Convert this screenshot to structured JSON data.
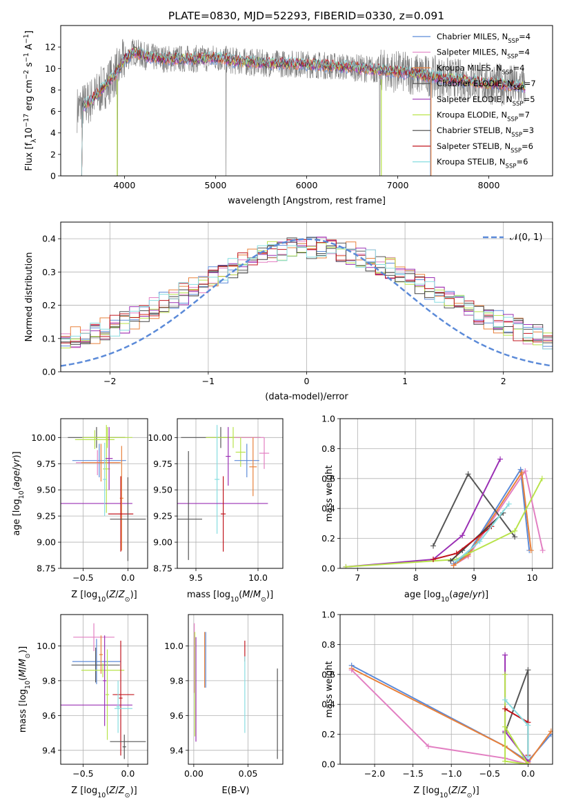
{
  "title": "PLATE=0830, MJD=52293, FIBERID=0330, z=0.091",
  "legend_models": [
    {
      "label": "Chabrier MILES, N",
      "sub": "SSP",
      "tail": "=4",
      "color": "#5b8ad8"
    },
    {
      "label": "Salpeter MILES, N",
      "sub": "SSP",
      "tail": "=4",
      "color": "#e27fc2"
    },
    {
      "label": "Kroupa MILES, N",
      "sub": "SSP",
      "tail": "=4",
      "color": "#e8803a"
    },
    {
      "label": "Chabrier ELODIE, N",
      "sub": "SSP",
      "tail": "=7",
      "color": "#555555"
    },
    {
      "label": "Salpeter ELODIE, N",
      "sub": "SSP",
      "tail": "=5",
      "color": "#9a2fb4"
    },
    {
      "label": "Kroupa ELODIE, N",
      "sub": "SSP",
      "tail": "=7",
      "color": "#b8e34a"
    },
    {
      "label": "Chabrier STELIB, N",
      "sub": "SSP",
      "tail": "=3",
      "color": "#444444"
    },
    {
      "label": "Salpeter STELIB, N",
      "sub": "SSP",
      "tail": "=6",
      "color": "#c0141c"
    },
    {
      "label": "Kroupa STELIB, N",
      "sub": "SSP",
      "tail": "=6",
      "color": "#86dde0"
    }
  ],
  "chart_data": [
    {
      "id": "spectrum",
      "type": "line",
      "xlabel": "wavelength [Angstrom, rest frame]",
      "ylabel": "Flux [f",
      "xlim": [
        3300,
        8700
      ],
      "ylim": [
        0,
        14
      ],
      "xticks": [
        4000,
        5000,
        6000,
        7000,
        8000
      ],
      "yticks": [
        0,
        2,
        4,
        6,
        8,
        10,
        12
      ],
      "continuum": {
        "x": [
          3500,
          3600,
          3700,
          3800,
          3900,
          4000,
          4100,
          4200,
          4400,
          4600,
          4800,
          5000,
          5200,
          5500,
          6000,
          6500,
          7000,
          7500,
          8000,
          8400
        ],
        "y": [
          6.3,
          6.8,
          7.6,
          8.5,
          9.5,
          10.8,
          11.6,
          11.2,
          10.9,
          10.9,
          10.9,
          11.0,
          10.7,
          10.5,
          10.4,
          10.1,
          9.7,
          9.1,
          8.6,
          8.3
        ]
      },
      "grid": false
    },
    {
      "id": "residuals",
      "type": "line",
      "xlabel": "(data-model)/error",
      "ylabel": "Normed distribution",
      "legend": "𝒩(0, 1)",
      "xlim": [
        -2.5,
        2.5
      ],
      "ylim": [
        0,
        0.45
      ],
      "xticks": [
        -2,
        -1,
        0,
        1,
        2
      ],
      "yticks": [
        0.0,
        0.1,
        0.2,
        0.3,
        0.4
      ],
      "gaussian": {
        "mu": 0,
        "sigma": 1,
        "color": "#5b8ad8"
      },
      "grid": true
    },
    {
      "id": "age_vs_Z",
      "type": "scatter",
      "xlabel": "Z [log",
      "ylabel": "age  [log",
      "xlim": [
        -0.75,
        0.22
      ],
      "ylim": [
        8.75,
        10.18
      ],
      "xticks": [
        -0.5,
        0.0
      ],
      "yticks": [
        8.75,
        9.0,
        9.25,
        9.5,
        9.75,
        10.0
      ],
      "points": [
        {
          "x": -0.35,
          "xerr": 0.32,
          "y": 10.0,
          "yerr": 0.1,
          "color": "#555555"
        },
        {
          "x": -0.23,
          "xerr": 0.28,
          "y": 10.0,
          "yerr": 0.1,
          "color": "#b8e34a"
        },
        {
          "x": -0.37,
          "xerr": 0.22,
          "y": 9.98,
          "yerr": 0.09,
          "color": "#b8e34a"
        },
        {
          "x": -0.32,
          "xerr": 0.3,
          "y": 9.78,
          "yerr": 0.16,
          "color": "#5b8ad8"
        },
        {
          "x": -0.34,
          "xerr": 0.24,
          "y": 9.76,
          "yerr": 0.12,
          "color": "#e27fc2"
        },
        {
          "x": -0.3,
          "xerr": 0.22,
          "y": 9.76,
          "yerr": 0.18,
          "color": "#e8803a"
        },
        {
          "x": -0.24,
          "xerr": 0.04,
          "y": 9.7,
          "yerr": 0.42,
          "color": "#b8e34a"
        },
        {
          "x": -0.21,
          "xerr": 0.04,
          "y": 9.8,
          "yerr": 0.3,
          "color": "#9a2fb4"
        },
        {
          "x": -0.35,
          "xerr": 0.4,
          "y": 9.37,
          "yerr": 0.0,
          "color": "#9a2fb4"
        },
        {
          "x": -0.26,
          "xerr": 0.02,
          "y": 9.6,
          "yerr": 0.35,
          "color": "#86dde0"
        },
        {
          "x": -0.07,
          "xerr": 0.02,
          "y": 9.42,
          "yerr": 0.5,
          "color": "#e8803a"
        },
        {
          "x": -0.08,
          "xerr": 0.14,
          "y": 9.27,
          "yerr": 0.36,
          "color": "#c0141c"
        },
        {
          "x": 0.0,
          "xerr": 0.2,
          "y": 9.22,
          "yerr": 0.4,
          "color": "#555555"
        }
      ],
      "grid": true
    },
    {
      "id": "age_vs_mass",
      "type": "scatter",
      "xlabel": "mass [log",
      "ylabel": "",
      "xlim": [
        9.35,
        10.2
      ],
      "ylim": [
        8.75,
        10.18
      ],
      "xticks": [
        9.5,
        10.0
      ],
      "yticks": [
        8.75,
        9.0,
        9.25,
        9.5,
        9.75,
        10.0
      ],
      "points": [
        {
          "x": 9.7,
          "xerr": 0.32,
          "y": 10.0,
          "yerr": 0.1,
          "color": "#555555"
        },
        {
          "x": 9.8,
          "xerr": 0.22,
          "y": 10.0,
          "yerr": 0.1,
          "color": "#b8e34a"
        },
        {
          "x": 9.93,
          "xerr": 0.12,
          "y": 10.0,
          "yerr": 0.0,
          "color": "#e27fc2"
        },
        {
          "x": 10.05,
          "xerr": 0.04,
          "y": 9.85,
          "yerr": 0.15,
          "color": "#e27fc2"
        },
        {
          "x": 9.86,
          "xerr": 0.04,
          "y": 9.86,
          "yerr": 0.14,
          "color": "#b8e34a"
        },
        {
          "x": 9.91,
          "xerr": 0.1,
          "y": 9.78,
          "yerr": 0.16,
          "color": "#5b8ad8"
        },
        {
          "x": 9.76,
          "xerr": 0.02,
          "y": 9.82,
          "yerr": 0.28,
          "color": "#9a2fb4"
        },
        {
          "x": 9.96,
          "xerr": 0.03,
          "y": 9.72,
          "yerr": 0.28,
          "color": "#e8803a"
        },
        {
          "x": 9.67,
          "xerr": 0.02,
          "y": 9.6,
          "yerr": 0.52,
          "color": "#86dde0"
        },
        {
          "x": 9.7,
          "xerr": 0.38,
          "y": 9.37,
          "yerr": 0.0,
          "color": "#9a2fb4"
        },
        {
          "x": 9.72,
          "xerr": 0.02,
          "y": 9.27,
          "yerr": 0.36,
          "color": "#c0141c"
        },
        {
          "x": 9.45,
          "xerr": 0.1,
          "y": 9.22,
          "yerr": 0.0,
          "color": "#555555"
        },
        {
          "x": 9.44,
          "xerr": 0.0,
          "y": 9.35,
          "yerr": 0.52,
          "color": "#555555"
        }
      ],
      "grid": true
    },
    {
      "id": "weight_vs_age",
      "type": "line",
      "xlabel": "age  [log",
      "ylabel": "mass weight",
      "xlim": [
        6.7,
        10.35
      ],
      "ylim": [
        0,
        1
      ],
      "xticks": [
        7,
        8,
        9,
        10
      ],
      "yticks": [
        0.0,
        0.2,
        0.4,
        0.6,
        0.8,
        1.0
      ],
      "series": [
        {
          "color": "#5b8ad8",
          "x": [
            8.65,
            8.9,
            9.8,
            9.95
          ],
          "y": [
            0.03,
            0.1,
            0.66,
            0.12
          ]
        },
        {
          "color": "#e27fc2",
          "x": [
            8.65,
            8.9,
            9.88,
            10.18
          ],
          "y": [
            0.02,
            0.08,
            0.65,
            0.12
          ]
        },
        {
          "color": "#e8803a",
          "x": [
            8.65,
            8.9,
            9.82,
            9.98
          ],
          "y": [
            0.02,
            0.09,
            0.64,
            0.12
          ]
        },
        {
          "color": "#555555",
          "x": [
            8.3,
            8.9,
            9.7
          ],
          "y": [
            0.15,
            0.63,
            0.21
          ]
        },
        {
          "color": "#9a2fb4",
          "x": [
            6.8,
            8.3,
            8.8,
            9.45
          ],
          "y": [
            0.01,
            0.06,
            0.22,
            0.73
          ]
        },
        {
          "color": "#b8e34a",
          "x": [
            6.8,
            8.7,
            9.7,
            10.17
          ],
          "y": [
            0.01,
            0.06,
            0.25,
            0.6
          ]
        },
        {
          "color": "#444444",
          "x": [
            8.6,
            8.8,
            9.5
          ],
          "y": [
            0.05,
            0.12,
            0.37
          ]
        },
        {
          "color": "#c0141c",
          "x": [
            8.3,
            8.7,
            9.3
          ],
          "y": [
            0.06,
            0.1,
            0.28
          ]
        },
        {
          "color": "#86dde0",
          "x": [
            8.7,
            9.1,
            9.6
          ],
          "y": [
            0.05,
            0.18,
            0.43
          ]
        }
      ],
      "grid": true
    },
    {
      "id": "mass_vs_Z",
      "type": "scatter",
      "xlabel": "Z [log",
      "ylabel": "mass [log",
      "xlim": [
        -0.75,
        0.22
      ],
      "ylim": [
        9.32,
        10.18
      ],
      "xticks": [
        -0.5,
        0.0
      ],
      "yticks": [
        9.4,
        9.6,
        9.8,
        10.0
      ],
      "points": [
        {
          "x": -0.38,
          "xerr": 0.23,
          "y": 10.05,
          "yerr": 0.08,
          "color": "#e27fc2"
        },
        {
          "x": -0.35,
          "xerr": 0.27,
          "y": 9.91,
          "yerr": 0.13,
          "color": "#5b8ad8"
        },
        {
          "x": -0.36,
          "xerr": 0.27,
          "y": 9.89,
          "yerr": 0.1,
          "color": "#555555"
        },
        {
          "x": -0.28,
          "xerr": 0.24,
          "y": 9.86,
          "yerr": 0.04,
          "color": "#b8e34a"
        },
        {
          "x": -0.3,
          "xerr": 0.02,
          "y": 9.95,
          "yerr": 0.11,
          "color": "#e8803a"
        },
        {
          "x": -0.26,
          "xerr": 0.02,
          "y": 9.8,
          "yerr": 0.26,
          "color": "#9a2fb4"
        },
        {
          "x": -0.23,
          "xerr": 0.02,
          "y": 9.72,
          "yerr": 0.26,
          "color": "#b8e34a"
        },
        {
          "x": -0.35,
          "xerr": 0.4,
          "y": 9.66,
          "yerr": 0.0,
          "color": "#9a2fb4"
        },
        {
          "x": -0.08,
          "xerr": 0.02,
          "y": 9.7,
          "yerr": 0.33,
          "color": "#c0141c"
        },
        {
          "x": -0.05,
          "xerr": 0.12,
          "y": 9.72,
          "yerr": 0.0,
          "color": "#c0141c"
        },
        {
          "x": -0.05,
          "xerr": 0.1,
          "y": 9.64,
          "yerr": 0.0,
          "color": "#86dde0"
        },
        {
          "x": -0.11,
          "xerr": 0.02,
          "y": 9.65,
          "yerr": 0.15,
          "color": "#86dde0"
        },
        {
          "x": 0.0,
          "xerr": 0.2,
          "y": 9.45,
          "yerr": 0.0,
          "color": "#555555"
        },
        {
          "x": -0.04,
          "xerr": 0.02,
          "y": 9.42,
          "yerr": 0.07,
          "color": "#555555"
        }
      ],
      "grid": true
    },
    {
      "id": "mass_vs_ebv",
      "type": "scatter",
      "xlabel": "E(B-V)",
      "ylabel": "",
      "xlim": [
        -0.005,
        0.082
      ],
      "ylim": [
        9.32,
        10.18
      ],
      "xticks": [
        0.0,
        0.05
      ],
      "yticks": [
        9.4,
        9.6,
        9.8,
        10.0
      ],
      "points": [
        {
          "x": 0.0005,
          "xerr": 0,
          "y": 9.93,
          "yerr": 0.2,
          "color": "#e27fc2"
        },
        {
          "x": 0.001,
          "xerr": 0,
          "y": 9.78,
          "yerr": 0.3,
          "color": "#b8e34a"
        },
        {
          "x": 0.002,
          "xerr": 0,
          "y": 9.75,
          "yerr": 0.3,
          "color": "#9a2fb4"
        },
        {
          "x": 0.01,
          "xerr": 0,
          "y": 9.92,
          "yerr": 0.16,
          "color": "#e8803a"
        },
        {
          "x": 0.011,
          "xerr": 0,
          "y": 9.92,
          "yerr": 0.16,
          "color": "#5b8ad8"
        },
        {
          "x": 0.047,
          "xerr": 0,
          "y": 9.97,
          "yerr": 0.06,
          "color": "#c0141c"
        },
        {
          "x": 0.047,
          "xerr": 0,
          "y": 9.72,
          "yerr": 0.22,
          "color": "#86dde0"
        },
        {
          "x": 0.077,
          "xerr": 0,
          "y": 9.61,
          "yerr": 0.26,
          "color": "#555555"
        }
      ],
      "grid": true
    },
    {
      "id": "weight_vs_Z",
      "type": "line",
      "xlabel": "Z [log",
      "ylabel": "mass weight",
      "xlim": [
        -2.45,
        0.32
      ],
      "ylim": [
        0,
        1
      ],
      "xticks": [
        -2.0,
        -1.5,
        -1.0,
        -0.5,
        0.0
      ],
      "yticks": [
        0.0,
        0.2,
        0.4,
        0.6,
        0.8,
        1.0
      ],
      "series": [
        {
          "color": "#5b8ad8",
          "x": [
            -2.3,
            -0.3,
            0.0,
            0.3
          ],
          "y": [
            0.66,
            0.12,
            0.02,
            0.2
          ]
        },
        {
          "color": "#e8803a",
          "x": [
            -2.3,
            -0.3,
            0.0,
            0.3
          ],
          "y": [
            0.64,
            0.12,
            0.01,
            0.22
          ]
        },
        {
          "color": "#e27fc2",
          "x": [
            -2.3,
            -1.3,
            -0.3,
            0.0
          ],
          "y": [
            0.63,
            0.12,
            0.04,
            0.0
          ]
        },
        {
          "color": "#555555",
          "x": [
            -0.3,
            0.0,
            0.0
          ],
          "y": [
            0.21,
            0.63,
            0.05
          ]
        },
        {
          "color": "#9a2fb4",
          "x": [
            -0.3,
            -0.3,
            0.0
          ],
          "y": [
            0.73,
            0.22,
            0.02
          ]
        },
        {
          "color": "#b8e34a",
          "x": [
            -0.3,
            -0.3,
            0.0,
            -0.3
          ],
          "y": [
            0.6,
            0.02,
            0.0,
            0.25
          ]
        },
        {
          "color": "#c0141c",
          "x": [
            -0.3,
            0.0,
            0.0
          ],
          "y": [
            0.37,
            0.28,
            0.06
          ]
        },
        {
          "color": "#86dde0",
          "x": [
            -0.3,
            0.0,
            0.0
          ],
          "y": [
            0.43,
            0.26,
            0.05
          ]
        }
      ],
      "grid": true
    }
  ]
}
